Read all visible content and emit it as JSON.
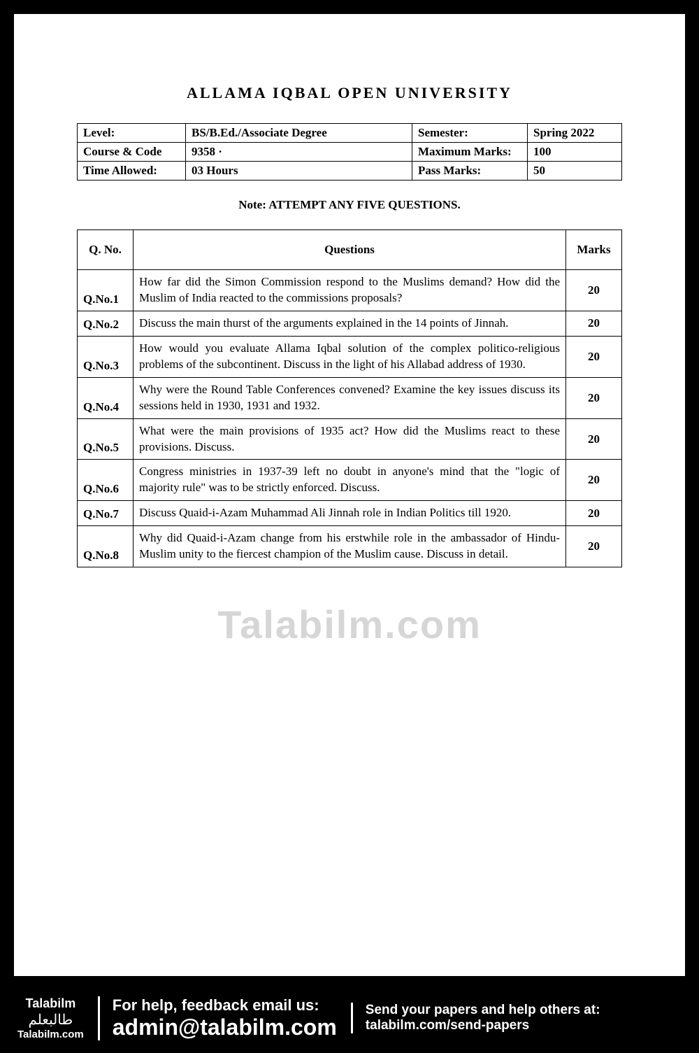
{
  "title": "ALLAMA IQBAL OPEN UNIVERSITY",
  "info": {
    "rows": [
      {
        "label1": "Level:",
        "value1": "BS/B.Ed./Associate Degree",
        "label2": "Semester:",
        "value2": "Spring 2022"
      },
      {
        "label1": "Course & Code",
        "value1": "9358 ·",
        "label2": "Maximum Marks:",
        "value2": "100"
      },
      {
        "label1": "Time Allowed:",
        "value1": "03 Hours",
        "label2": "Pass Marks:",
        "value2": "50"
      }
    ]
  },
  "note": "Note:  ATTEMPT ANY FIVE QUESTIONS.",
  "questions": {
    "headers": {
      "qno": "Q. No.",
      "question": "Questions",
      "marks": "Marks"
    },
    "rows": [
      {
        "qno": "Q.No.1",
        "text": "How far did the Simon Commission respond to the Muslims demand? How did the Muslim of India reacted to the commissions proposals?",
        "marks": "20"
      },
      {
        "qno": "Q.No.2",
        "text": "Discuss the main thurst of the arguments explained in the 14 points of Jinnah.",
        "marks": "20"
      },
      {
        "qno": "Q.No.3",
        "text": "How would you evaluate Allama Iqbal solution of the complex politico-religious problems of the subcontinent. Discuss in the light of his Allabad address of 1930.",
        "marks": "20"
      },
      {
        "qno": "Q.No.4",
        "text": "Why were the Round Table Conferences convened? Examine the key issues discuss its sessions held in 1930, 1931 and 1932.",
        "marks": "20"
      },
      {
        "qno": "Q.No.5",
        "text": "What were the main provisions of 1935 act? How did the Muslims react to these provisions. Discuss.",
        "marks": "20"
      },
      {
        "qno": "Q.No.6",
        "text": "Congress ministries in 1937-39 left no doubt in anyone's mind that the \"logic of majority rule\" was to be strictly enforced. Discuss.",
        "marks": "20"
      },
      {
        "qno": "Q.No.7",
        "text": "Discuss Quaid-i-Azam Muhammad Ali Jinnah role in Indian Politics till 1920.",
        "marks": "20"
      },
      {
        "qno": "Q.No.8",
        "text": "Why did Quaid-i-Azam change from his erstwhile role in the ambassador of Hindu-Muslim unity to the fiercest champion of the Muslim cause. Discuss in detail.",
        "marks": "20"
      }
    ]
  },
  "watermark": "Talabilm.com",
  "footer": {
    "brand": "Talabilm",
    "brand_ar": "طالبعلم",
    "brand_url": "Talabilm.com",
    "help_line1": "For help, feedback email us:",
    "help_line2": "admin@talabilm.com",
    "send_line1": "Send your papers and help others at:",
    "send_line2": "talabilm.com/send-papers"
  }
}
